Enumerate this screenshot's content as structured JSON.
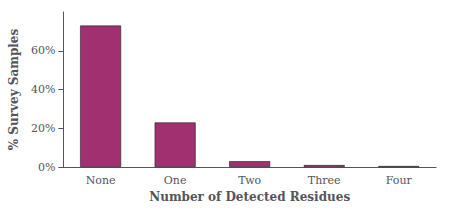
{
  "chart_data": {
    "type": "bar",
    "categories": [
      "None",
      "One",
      "Two",
      "Three",
      "Four"
    ],
    "values": [
      73,
      23,
      3,
      1,
      0.5
    ],
    "color": "#a03070",
    "xlabel": "Number of Detected Residues",
    "ylabel": "% Survey Samples",
    "ylim": [
      0,
      80
    ],
    "yticks": [
      {
        "value": 0,
        "label": "0%"
      },
      {
        "value": 20,
        "label": "20%"
      },
      {
        "value": 40,
        "label": "40%"
      },
      {
        "value": 60,
        "label": "60%"
      }
    ],
    "grid": false
  }
}
